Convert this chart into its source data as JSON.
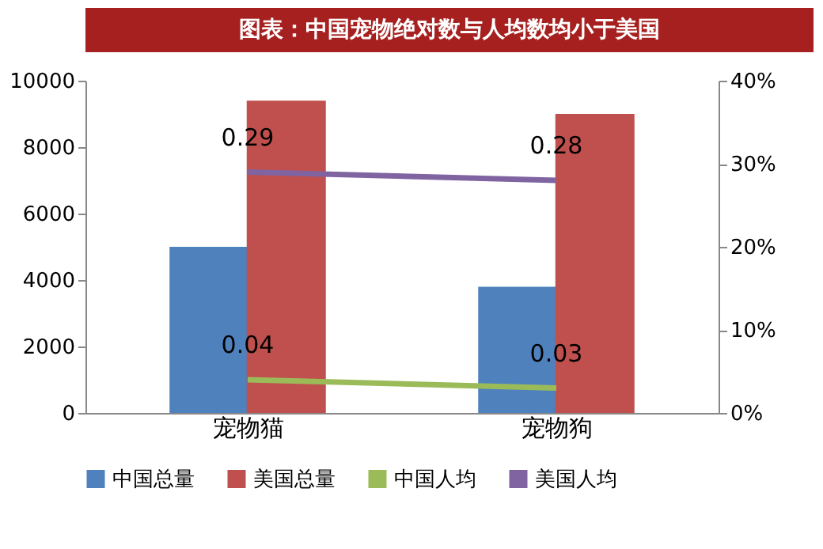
{
  "chart_data": {
    "type": "bar",
    "title": "图表：中国宠物绝对数与人均数均小于美国",
    "categories": [
      "宠物猫",
      "宠物狗"
    ],
    "series": [
      {
        "name": "中国总量",
        "color": "#4f81bd",
        "values": [
          5000,
          3800
        ]
      },
      {
        "name": "美国总量",
        "color": "#c0504d",
        "values": [
          9400,
          9000
        ]
      },
      {
        "name": "中国人均",
        "type": "line",
        "axis": "y2",
        "color": "#9bbb59",
        "values": [
          0.04,
          0.03
        ],
        "value_labels": [
          "0.04",
          "0.03"
        ]
      },
      {
        "name": "美国人均",
        "type": "line",
        "axis": "y2",
        "color": "#8064a2",
        "values": [
          0.29,
          0.28
        ],
        "value_labels": [
          "0.29",
          "0.28"
        ]
      }
    ],
    "ylim": [
      0,
      10000
    ],
    "yticks": [
      0,
      2000,
      4000,
      6000,
      8000,
      10000
    ],
    "y2lim": [
      0,
      0.4
    ],
    "y2ticks": [
      {
        "value": 0,
        "label": "0%"
      },
      {
        "value": 0.1,
        "label": "10%"
      },
      {
        "value": 0.2,
        "label": "20%"
      },
      {
        "value": 0.3,
        "label": "30%"
      },
      {
        "value": 0.4,
        "label": "40%"
      }
    ],
    "grid": false,
    "legend": "bottom",
    "marker": "none",
    "line_style": "solid"
  }
}
